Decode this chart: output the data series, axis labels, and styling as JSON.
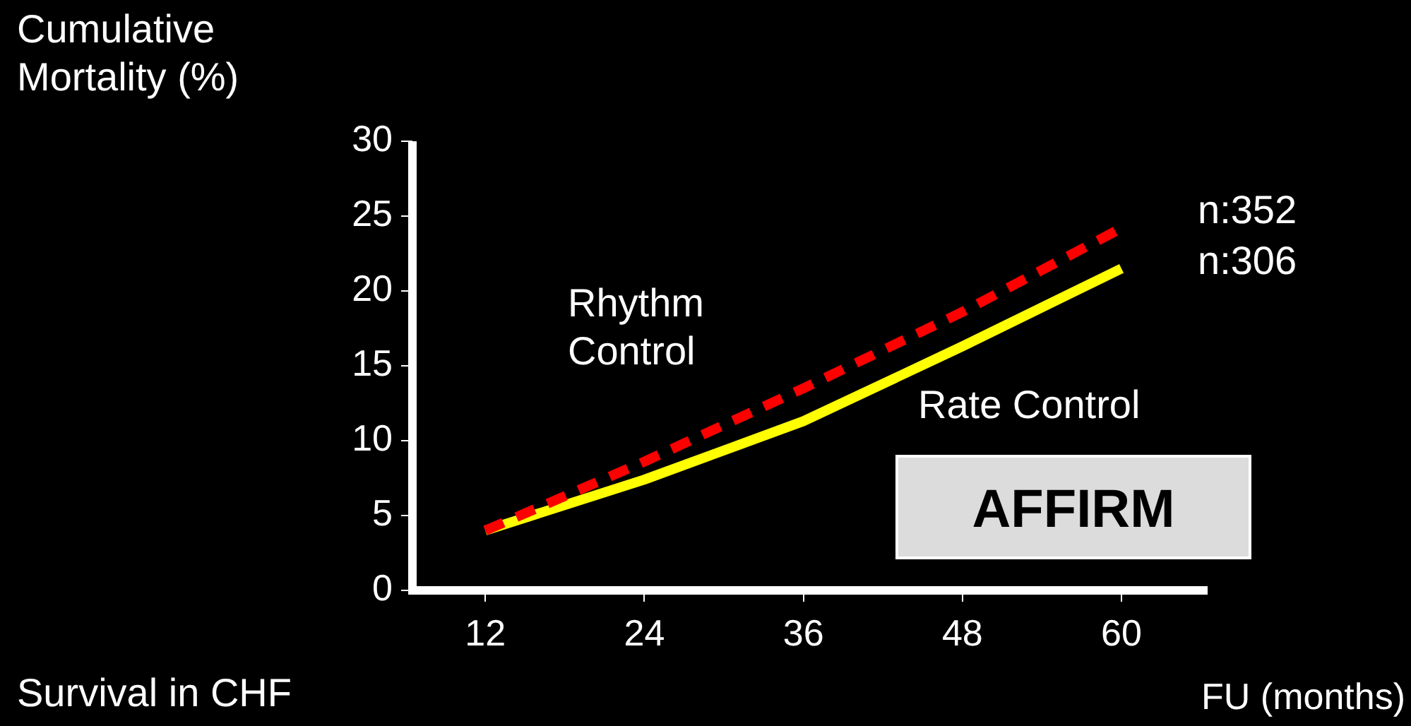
{
  "chart_data": {
    "type": "line",
    "ylabel": "Cumulative Mortality (%)",
    "xlabel": "FU (months)",
    "x": [
      12,
      24,
      36,
      48,
      60
    ],
    "xlim": [
      6.5,
      66.5
    ],
    "xticks": [
      12,
      24,
      36,
      48,
      60
    ],
    "ylim": [
      0,
      30
    ],
    "yticks": [
      0,
      5,
      10,
      15,
      20,
      25,
      30
    ],
    "series": [
      {
        "name": "Rhythm Control",
        "color": "#ff0000",
        "line_style": "dashed",
        "values": [
          4.0,
          8.6,
          13.5,
          18.6,
          24.2
        ]
      },
      {
        "name": "Rate Control",
        "color": "#ffff00",
        "line_style": "solid",
        "values": [
          4.0,
          7.4,
          11.3,
          16.3,
          21.5
        ]
      }
    ],
    "annotations": [
      "n:352",
      "n:306",
      "AFFIRM",
      "Survival in CHF"
    ],
    "grid": false,
    "legend": false,
    "marker": "none"
  }
}
